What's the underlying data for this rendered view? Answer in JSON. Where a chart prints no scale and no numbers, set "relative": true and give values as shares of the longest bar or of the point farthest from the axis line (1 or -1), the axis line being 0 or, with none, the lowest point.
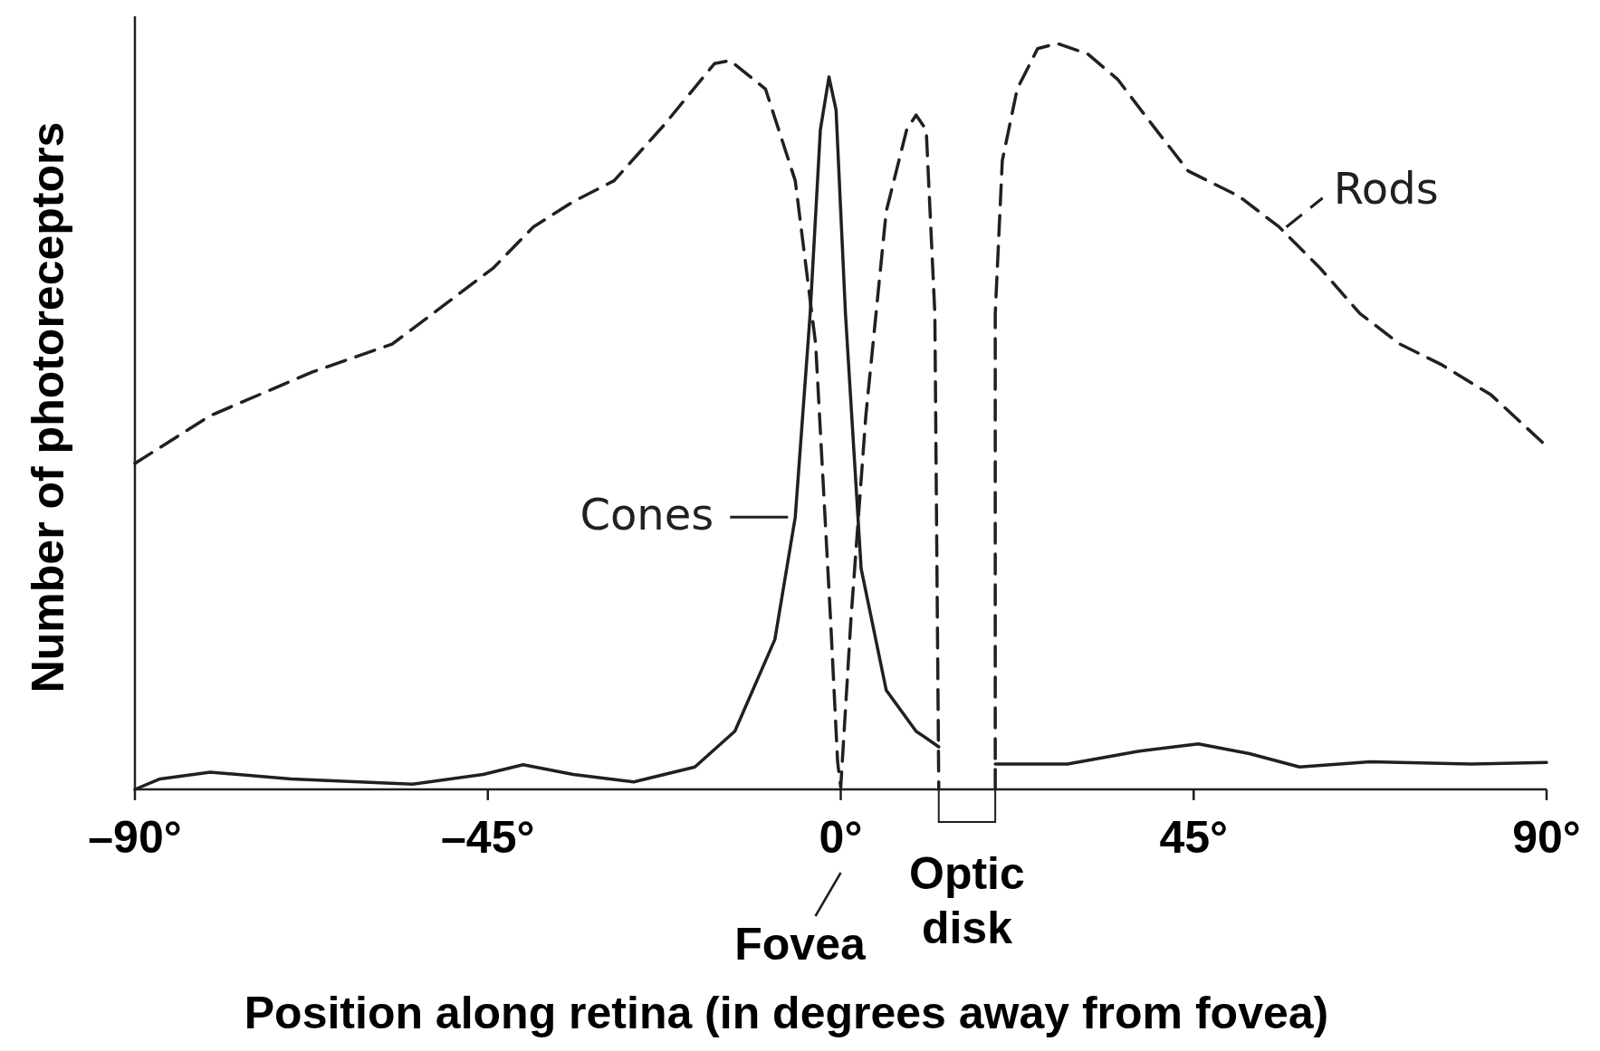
{
  "chart_data": {
    "type": "line",
    "relative": true,
    "xlabel": "Position along retina (in degrees away from fovea)",
    "ylabel": "Number of photoreceptors",
    "xlim": [
      -90,
      90
    ],
    "xticks": [
      {
        "value": -90,
        "label": "–90°"
      },
      {
        "value": -45,
        "label": "–45°"
      },
      {
        "value": 0,
        "label": "0°"
      },
      {
        "value": 45,
        "label": "45°"
      },
      {
        "value": 90,
        "label": "90°"
      }
    ],
    "series": [
      {
        "name": "Rods",
        "color": "#231f20",
        "line_style": "dashed",
        "x": [
          -90,
          -80.4,
          -67.5,
          -57.2,
          -52,
          -44.3,
          -39.2,
          -34.1,
          -28.9,
          -22.5,
          -16.1,
          -14.1,
          -9.6,
          -5.8,
          -3.2,
          -1.3,
          -0.4,
          0,
          1.3,
          3.2,
          5.8,
          8.4,
          9.6,
          10.9,
          12,
          12.5,
          16,
          19.7,
          19.7,
          20.6,
          22.5,
          25.1,
          27.6,
          31.5,
          35.3,
          39.2,
          44.3,
          50.8,
          55.9,
          61.1,
          66.2,
          71.3,
          76.5,
          82.9,
          90
        ],
        "values": [
          0.437,
          0.501,
          0.559,
          0.597,
          0.638,
          0.699,
          0.754,
          0.788,
          0.816,
          0.891,
          0.973,
          0.977,
          0.939,
          0.816,
          0.597,
          0.228,
          0.037,
          0.003,
          0.228,
          0.501,
          0.775,
          0.884,
          0.904,
          0.884,
          0.638,
          0,
          null,
          0,
          0.638,
          0.843,
          0.939,
          0.993,
          1,
          0.986,
          0.952,
          0.898,
          0.829,
          0.795,
          0.754,
          0.699,
          0.638,
          0.597,
          0.57,
          0.529,
          0.46
        ]
      },
      {
        "name": "Cones",
        "color": "#231f20",
        "line_style": "solid",
        "x": [
          -90,
          -86.8,
          -80.4,
          -70.1,
          -54.6,
          -45.6,
          -40.5,
          -34.1,
          -26.4,
          -18.6,
          -13.5,
          -8.4,
          -5.8,
          -3.9,
          -2.6,
          -1.5,
          -0.6,
          0.6,
          2.6,
          5.8,
          9.6,
          12.5,
          16,
          19.7,
          28.9,
          37.9,
          45.6,
          52.1,
          58.5,
          67.5,
          80.4,
          90
        ],
        "values": [
          0,
          0.014,
          0.023,
          0.014,
          0.007,
          0.02,
          0.033,
          0.02,
          0.01,
          0.03,
          0.078,
          0.201,
          0.365,
          0.638,
          0.884,
          0.955,
          0.911,
          0.638,
          0.296,
          0.133,
          0.078,
          0.057,
          null,
          0.034,
          0.034,
          0.051,
          0.061,
          0.048,
          0.03,
          0.037,
          0.034,
          0.036
        ]
      }
    ],
    "annotations": [
      {
        "text": "Fovea",
        "x": 0
      },
      "Optic disk"
    ]
  }
}
